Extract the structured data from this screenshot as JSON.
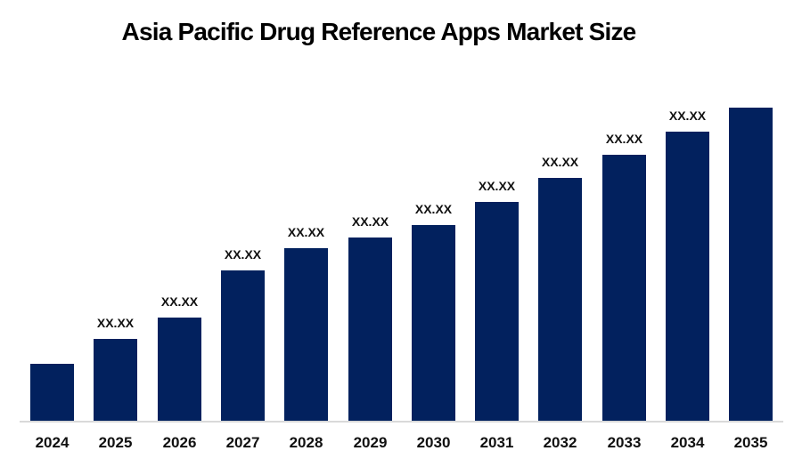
{
  "chart_data": {
    "type": "bar",
    "title": "Asia Pacific Drug Reference Apps Market Size",
    "categories": [
      "2024",
      "2025",
      "2026",
      "2027",
      "2028",
      "2029",
      "2030",
      "2031",
      "2032",
      "2033",
      "2034",
      "2035"
    ],
    "series": [
      {
        "name": "Market Size",
        "values_relative_pct": [
          18.2,
          26.1,
          33.0,
          48.0,
          55.1,
          58.5,
          62.5,
          69.9,
          77.6,
          84.9,
          92.3,
          100
        ],
        "data_labels": [
          "",
          "XX.XX",
          "XX.XX",
          "XX.XX",
          "XX.XX",
          "XX.XX",
          "XX.XX",
          "XX.XX",
          "XX.XX",
          "XX.XX",
          "XX.XX",
          ""
        ]
      }
    ],
    "xlabel": "",
    "ylabel": "",
    "value_axis_visible": false,
    "gridlines": false,
    "legend": "none",
    "bar_color": "#02215E",
    "axis_line_color": "#D9D9D9",
    "label_color": "#111111",
    "title_color": "#000000",
    "background_color": "#FFFFFF"
  }
}
